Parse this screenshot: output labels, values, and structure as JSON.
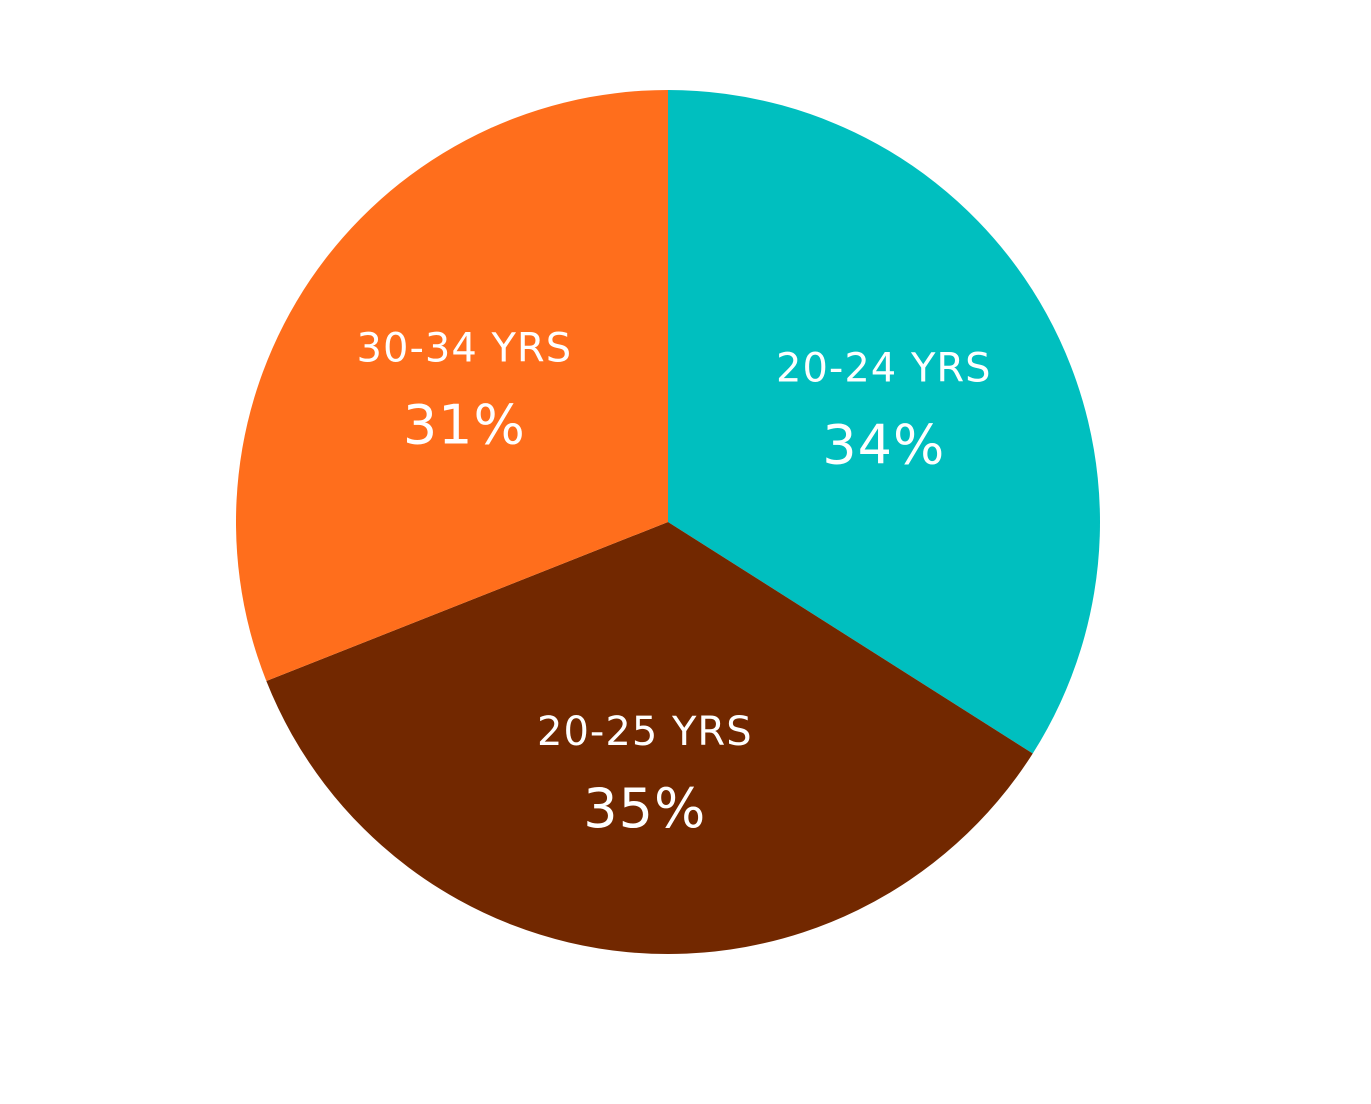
{
  "chart_data": {
    "type": "pie",
    "slices": [
      {
        "label": "20-24 YRS",
        "value": 34,
        "value_label": "34%",
        "color": "#00BFBF"
      },
      {
        "label": "20-25 YRS",
        "value": 35,
        "value_label": "35%",
        "color": "#722800"
      },
      {
        "label": "30-34 YRS",
        "value": 31,
        "value_label": "31%",
        "color": "#FF6E1C"
      }
    ],
    "start_angle": "top (12 o'clock)",
    "direction": "clockwise",
    "legend": "none",
    "title": ""
  }
}
